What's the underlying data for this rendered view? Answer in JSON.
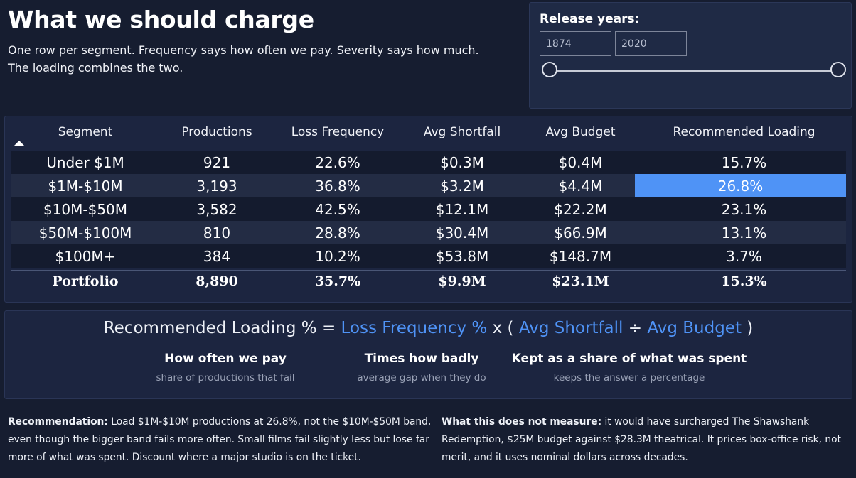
{
  "header": {
    "title": "What we should charge",
    "subtitle_line1": "One row per segment. Frequency says how often we pay. Severity says how much.",
    "subtitle_line2": "The loading combines the two."
  },
  "slicer": {
    "title": "Release years:",
    "min_value": "1874",
    "max_value": "2020",
    "range_fill": [
      0.0,
      1.0
    ]
  },
  "table": {
    "sort_icon": "sort-ascending-icon",
    "columns": [
      "Segment",
      "Productions",
      "Loss Frequency",
      "Avg Shortfall",
      "Avg Budget",
      "Recommended Loading"
    ],
    "rows": [
      [
        "Under $1M",
        "921",
        "22.6%",
        "$0.3M",
        "$0.4M",
        "15.7%"
      ],
      [
        "$1M-$10M",
        "3,193",
        "36.8%",
        "$3.2M",
        "$4.4M",
        "26.8%"
      ],
      [
        "$10M-$50M",
        "3,582",
        "42.5%",
        "$12.1M",
        "$22.2M",
        "23.1%"
      ],
      [
        "$50M-$100M",
        "810",
        "28.8%",
        "$30.4M",
        "$66.9M",
        "13.1%"
      ],
      [
        "$100M+",
        "384",
        "10.2%",
        "$53.8M",
        "$148.7M",
        "3.7%"
      ]
    ],
    "highlight_color": "#4f93f6",
    "totals": [
      "Portfolio",
      "8,890",
      "35.7%",
      "$9.9M",
      "$23.1M",
      "15.3%"
    ]
  },
  "formula": {
    "lhs": "Recommended Loading %",
    "eq": "=",
    "term1": "Loss Frequency %",
    "times": "x",
    "open": "(",
    "term2": "Avg Shortfall",
    "divide": "÷",
    "term3": "Avg Budget",
    "close": ")",
    "term_color": "#4f93f6",
    "parts": [
      {
        "heading": "How often we pay",
        "sub": "share of productions that fail"
      },
      {
        "heading": "Times how badly",
        "sub": "average gap when they do"
      },
      {
        "heading": "Kept as a share of what was spent",
        "sub": "keeps the answer a percentage"
      }
    ]
  },
  "notes": {
    "recommendation_label": "Recommendation:",
    "recommendation_text": "Load $1M-$10M productions at 26.8%, not the $10M-$50M band, even though the bigger band fails more often. Small films fail slightly less but lose far more of what was spent. Discount where a major studio is on the ticket.",
    "limits_label": "What this does not measure:",
    "limits_text": "it would have surcharged The Shawshank Redemption, $25M budget against $28.3M theatrical. It prices box-office risk, not merit, and it uses nominal dollars across decades."
  },
  "colors": {
    "background": "#161d30",
    "panel": "#1c2540",
    "accent": "#4f93f6"
  }
}
